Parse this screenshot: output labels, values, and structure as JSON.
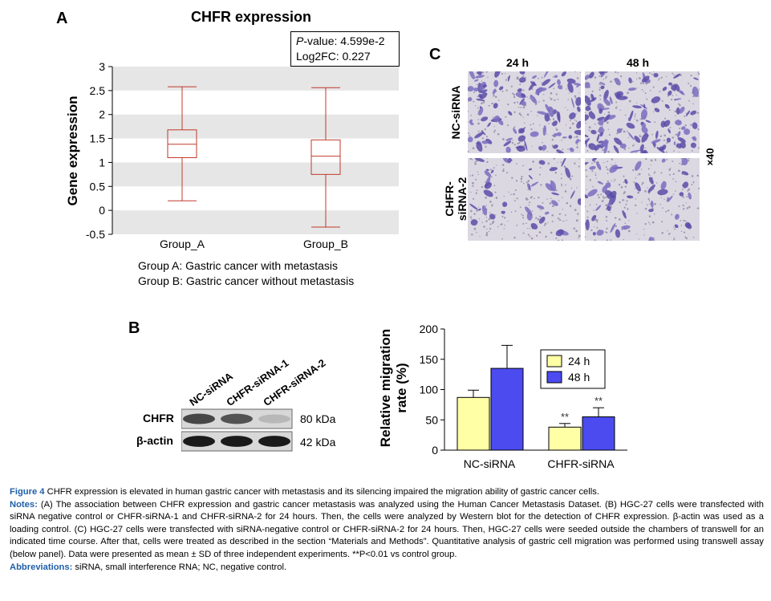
{
  "panel_a": {
    "letter": "A",
    "title": "CHFR expression",
    "stat_pvalue_label": "P",
    "stat_pvalue_rest": "-value: 4.599e-2",
    "stat_log2fc": "Log2FC: 0.227",
    "ylabel": "Gene expression",
    "legend_a": "Group A: Gastric cancer with metastasis",
    "legend_b": "Group B: Gastric cancer without metastasis"
  },
  "panel_b": {
    "letter": "B",
    "lanes": [
      "NC-siRNA",
      "CHFR-siRNA-1",
      "CHFR-siRNA-2"
    ],
    "rows": [
      {
        "label": "CHFR",
        "size": "80 kDa",
        "intensity": [
          0.75,
          0.7,
          0.25
        ]
      },
      {
        "label": "β-actin",
        "size": "42 kDa",
        "intensity": [
          0.95,
          0.95,
          0.95
        ]
      }
    ]
  },
  "panel_c": {
    "letter": "C",
    "col_labels": [
      "24 h",
      "48 h"
    ],
    "row_labels": [
      "NC-siRNA",
      "CHFR-siRNA-2"
    ],
    "row_label_lines": [
      [
        "NC-siRNA"
      ],
      [
        "CHFR-",
        "siRNA-2"
      ]
    ],
    "magnification": "×40",
    "density": [
      [
        0.9,
        1.0
      ],
      [
        0.35,
        0.45
      ]
    ]
  },
  "chart_data": [
    {
      "type": "box",
      "title": "CHFR expression",
      "ylabel": "Gene expression",
      "categories": [
        "Group_A",
        "Group_B"
      ],
      "ylim": [
        -0.5,
        3
      ],
      "yticks": [
        3,
        2.5,
        2,
        1.5,
        1,
        0.5,
        0,
        -0.5
      ],
      "boxes": [
        {
          "name": "Group_A",
          "min": 0.2,
          "q1": 1.1,
          "median": 1.38,
          "q3": 1.68,
          "max": 2.58
        },
        {
          "name": "Group_B",
          "min": -0.35,
          "q1": 0.75,
          "median": 1.13,
          "q3": 1.47,
          "max": 2.56
        }
      ],
      "color": "#c0392b",
      "grid_band_color": "#e6e6e6"
    },
    {
      "type": "bar",
      "ylabel": "Relative migration rate (%)",
      "categories": [
        "NC-siRNA",
        "CHFR-siRNA"
      ],
      "ylim": [
        0,
        200
      ],
      "yticks": [
        200,
        150,
        100,
        50,
        0
      ],
      "series": [
        {
          "name": "24 h",
          "color": "#ffffa6",
          "values": [
            87,
            38
          ],
          "errors": [
            12,
            6
          ],
          "annotations": [
            "",
            "**"
          ]
        },
        {
          "name": "48 h",
          "color": "#4b4bf0",
          "values": [
            135,
            55
          ],
          "errors": [
            38,
            15
          ],
          "annotations": [
            "",
            "**"
          ]
        }
      ],
      "legend": "upper-right"
    }
  ],
  "caption": {
    "figure_label": "Figure 4",
    "figure_text": " CHFR expression is elevated in human gastric cancer with metastasis and its silencing impaired the migration ability of gastric cancer cells.",
    "notes_label": "Notes:",
    "notes_text": " (A) The association between CHFR expression and gastric cancer metastasis was analyzed using the Human Cancer Metastasis Dataset. (B) HGC-27 cells were transfected with siRNA negative control or CHFR-siRNA-1 and CHFR-siRNA-2 for 24 hours. Then, the cells were analyzed by Western blot for the detection of CHFR expression. β-actin was used as a loading control. (C) HGC-27 cells were transfected with siRNA-negative control or CHFR-siRNA-2 for 24 hours. Then, HGC-27 cells were seeded outside the chambers of transwell for an indicated time course. After that, cells were treated as described in the section “Materials and Methods”. Quantitative analysis of gastric cell migration was performed using transwell assay (below panel). Data were presented as mean ± SD of three independent experiments. **P<0.01 vs control group.",
    "abbrev_label": "Abbreviations:",
    "abbrev_text": " siRNA, small interference RNA; NC, negative control."
  }
}
